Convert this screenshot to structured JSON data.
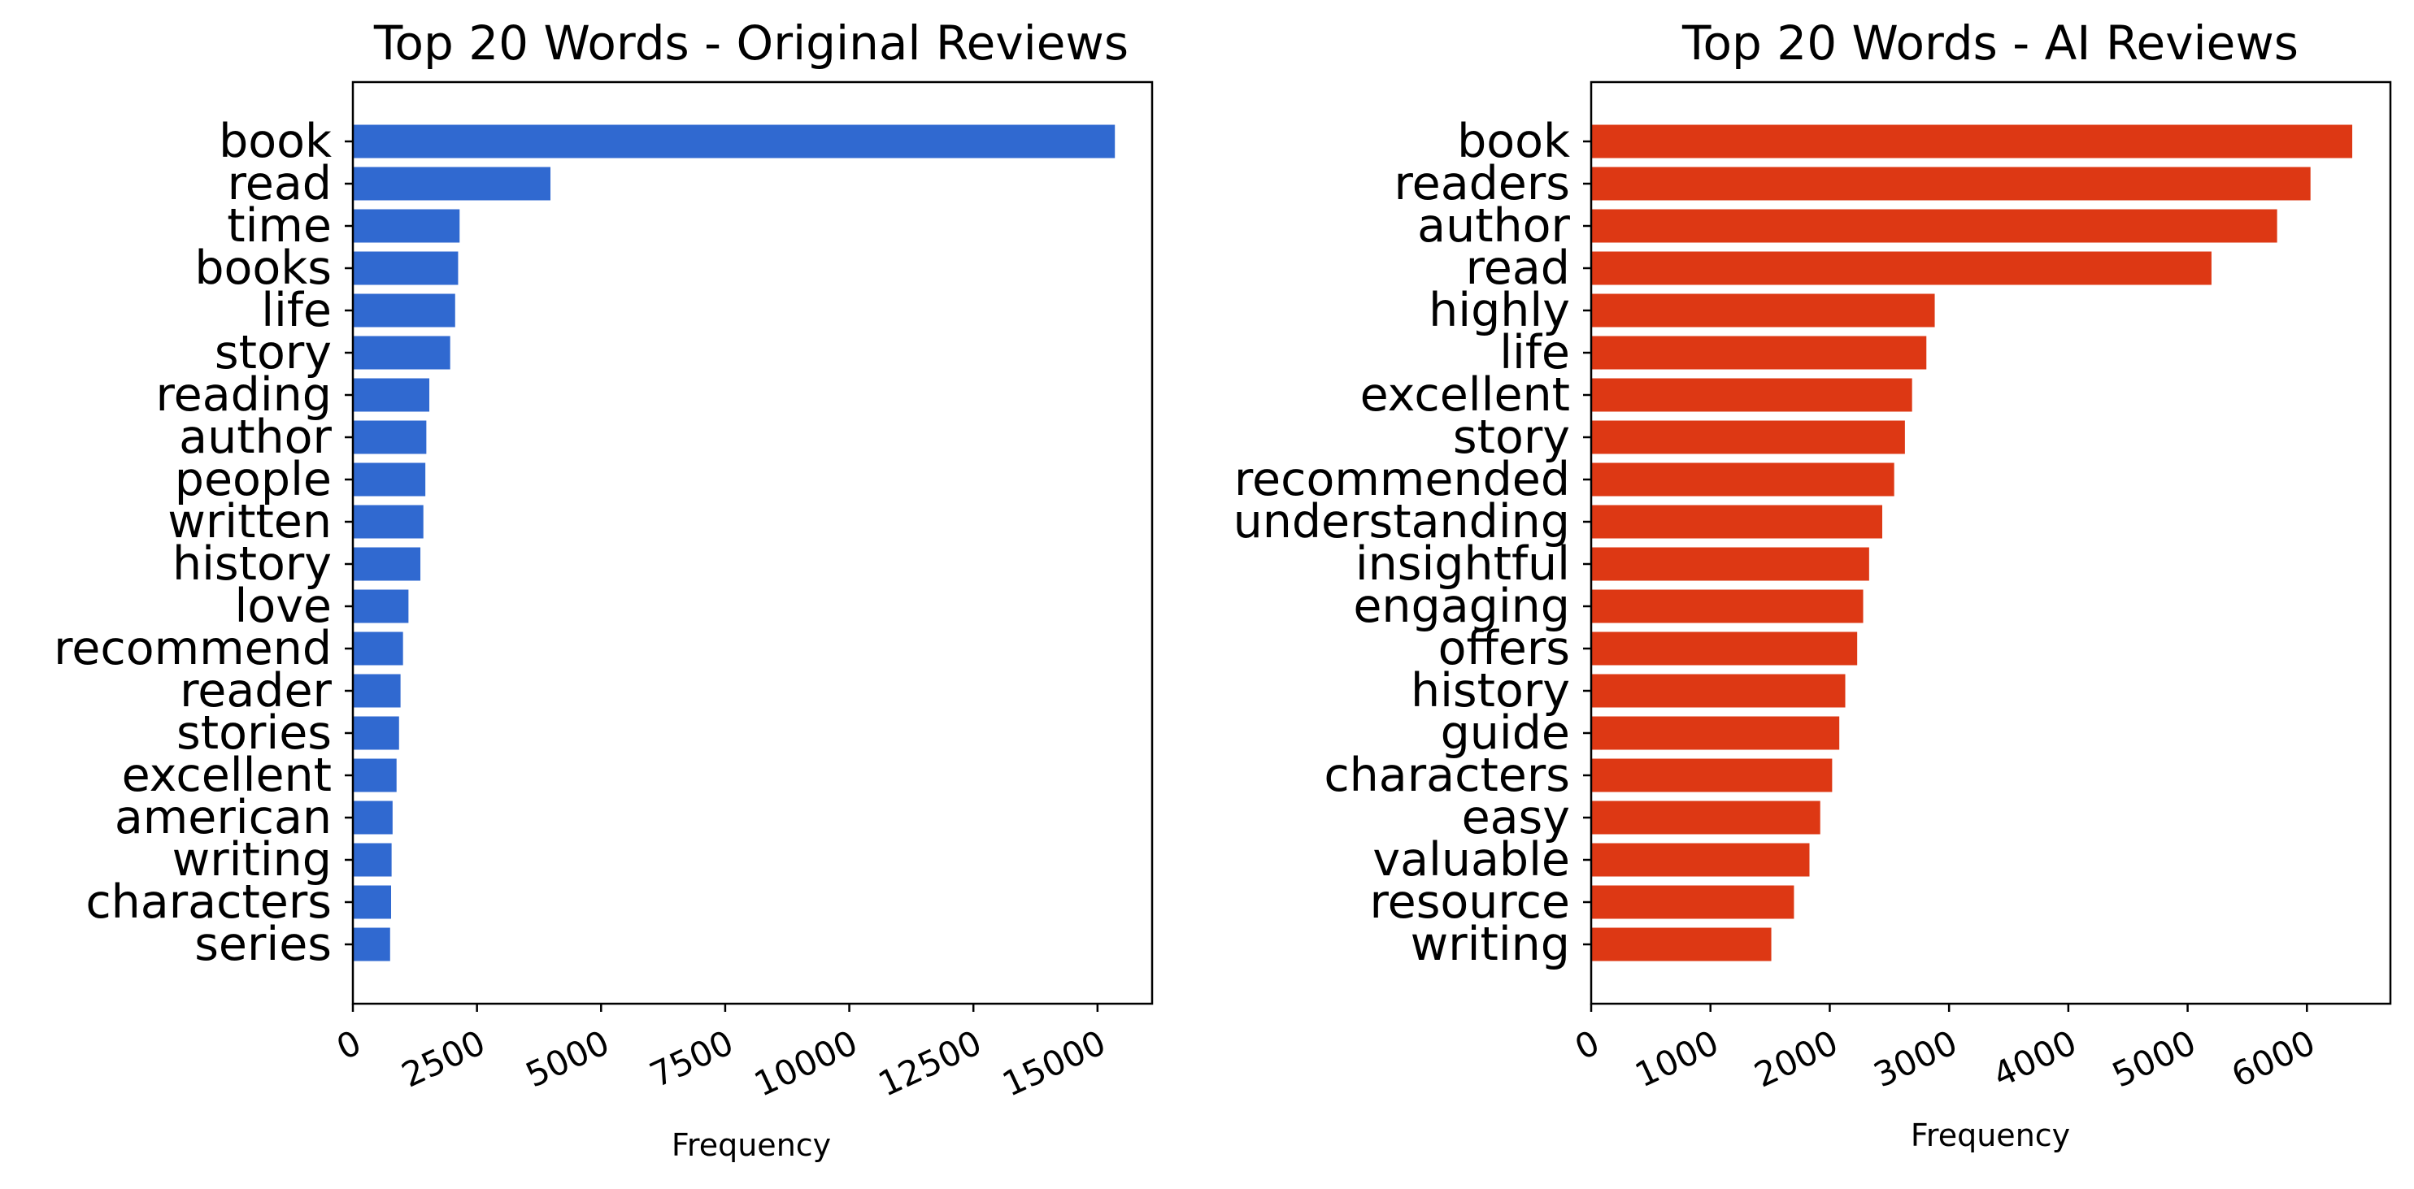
{
  "chart_data": [
    {
      "type": "bar",
      "orientation": "horizontal",
      "title": "Top 20 Words - Original Reviews",
      "xlabel": "Frequency",
      "ylabel": "",
      "xlim": [
        0,
        16100
      ],
      "xticks": [
        0,
        2500,
        5000,
        7500,
        10000,
        12500,
        15000
      ],
      "xtick_labels": [
        "0",
        "2500",
        "5000",
        "7500",
        "10000",
        "12500",
        "15000"
      ],
      "grid": false,
      "color": "#3069d0",
      "categories": [
        "book",
        "read",
        "time",
        "books",
        "life",
        "story",
        "reading",
        "author",
        "people",
        "written",
        "history",
        "love",
        "recommend",
        "reader",
        "stories",
        "excellent",
        "american",
        "writing",
        "characters",
        "series"
      ],
      "values": [
        15350,
        3980,
        2150,
        2120,
        2060,
        1960,
        1540,
        1480,
        1460,
        1420,
        1360,
        1120,
        1010,
        960,
        930,
        880,
        800,
        780,
        770,
        750
      ]
    },
    {
      "type": "bar",
      "orientation": "horizontal",
      "title": "Top 20 Words - AI Reviews",
      "xlabel": "Frequency",
      "ylabel": "",
      "xlim": [
        0,
        6700
      ],
      "xticks": [
        0,
        1000,
        2000,
        3000,
        4000,
        5000,
        6000
      ],
      "xtick_labels": [
        "0",
        "1000",
        "2000",
        "3000",
        "4000",
        "5000",
        "6000"
      ],
      "grid": false,
      "color": "#dd3814",
      "categories": [
        "book",
        "readers",
        "author",
        "read",
        "highly",
        "life",
        "excellent",
        "story",
        "recommended",
        "understanding",
        "insightful",
        "engaging",
        "offers",
        "history",
        "guide",
        "characters",
        "easy",
        "valuable",
        "resource",
        "writing"
      ],
      "values": [
        6380,
        6030,
        5750,
        5200,
        2880,
        2810,
        2690,
        2630,
        2540,
        2440,
        2330,
        2280,
        2230,
        2130,
        2080,
        2020,
        1920,
        1830,
        1700,
        1510
      ]
    }
  ]
}
